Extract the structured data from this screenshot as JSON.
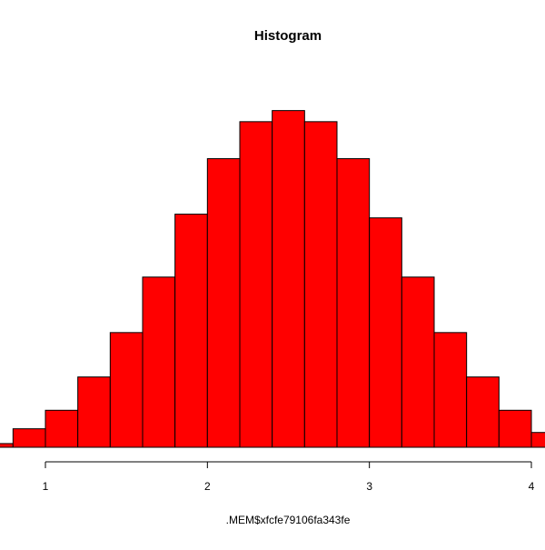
{
  "chart_data": {
    "type": "bar",
    "title": "Histogram",
    "xlabel": ".MEM$xfcfe79106fa343fe",
    "ylabel": "",
    "bin_edges": [
      0.6,
      0.8,
      1.0,
      1.2,
      1.4,
      1.6,
      1.8,
      2.0,
      2.2,
      2.4,
      2.6,
      2.8,
      3.0,
      3.2,
      3.4,
      3.6,
      3.8,
      4.0,
      4.2
    ],
    "counts": [
      1,
      5,
      10,
      19,
      31,
      46,
      63,
      78,
      88,
      91,
      88,
      78,
      62,
      46,
      31,
      19,
      10,
      4
    ],
    "xlim": [
      0.6,
      4.0
    ],
    "ylim": [
      0,
      100
    ],
    "x_ticks": [
      1,
      2,
      3,
      4
    ],
    "x_tick_labels": [
      "1",
      "2",
      "3",
      "4"
    ],
    "bar_color": "#ff0000",
    "border_color": "#000000",
    "grid": false,
    "legend": "none"
  }
}
